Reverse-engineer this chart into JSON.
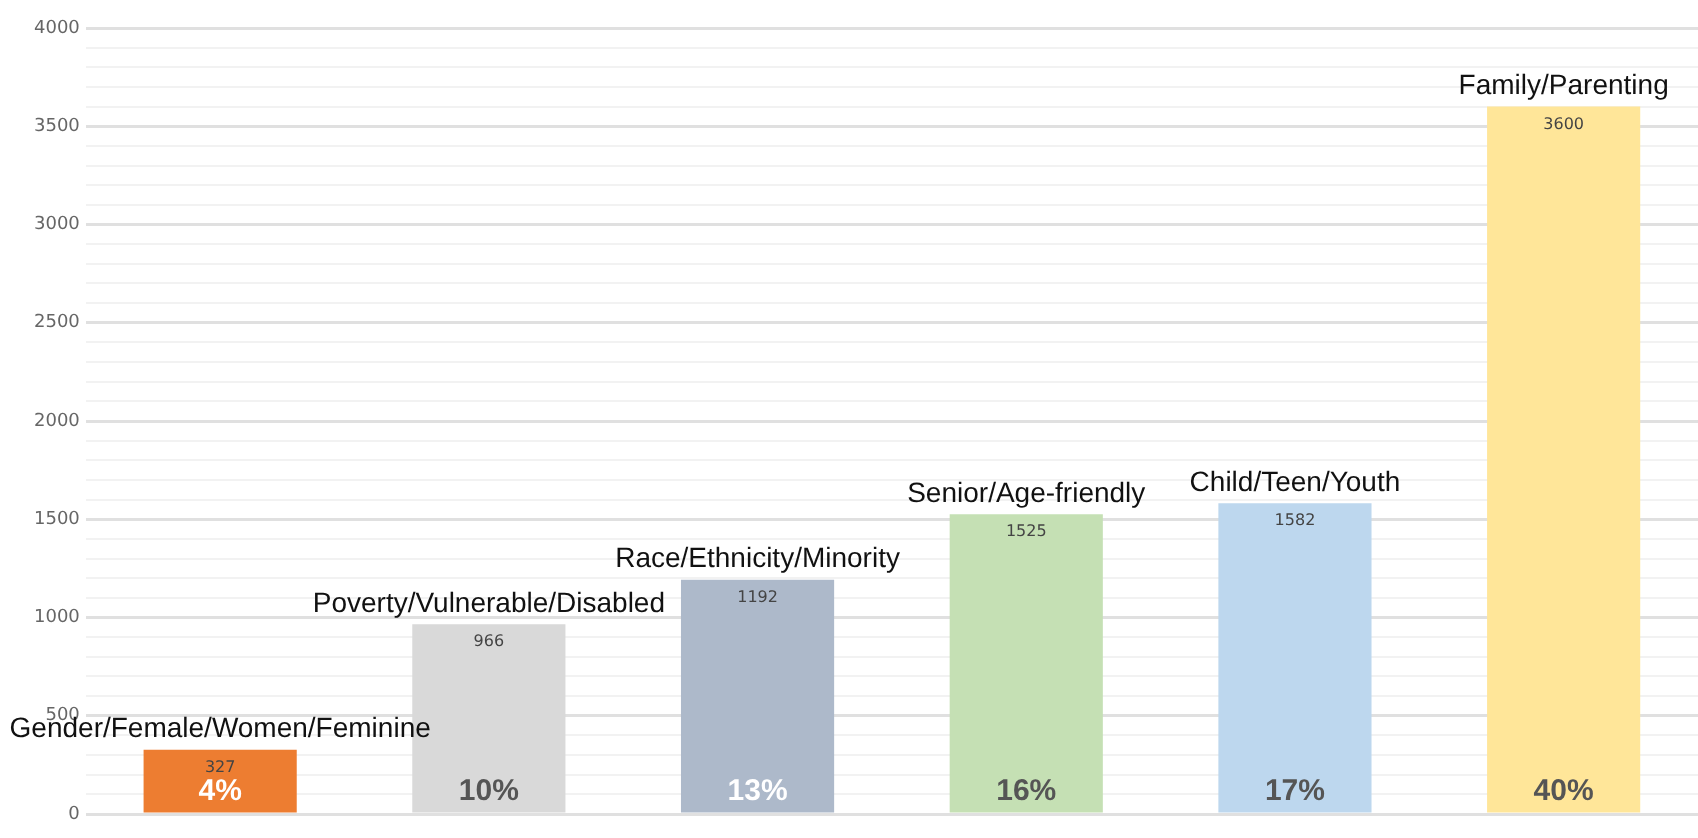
{
  "chart_data": {
    "type": "bar",
    "categories": [
      "Gender/Female/Women/Feminine",
      "Poverty/Vulnerable/Disabled",
      "Race/Ethnicity/Minority",
      "Senior/Age-friendly",
      "Child/Teen/Youth",
      "Family/Parenting"
    ],
    "values": [
      327,
      966,
      1192,
      1525,
      1582,
      3600
    ],
    "colors": [
      "#ed7d31",
      "#d9d9d9",
      "#adb9ca",
      "#c5e0b4",
      "#bdd7ee",
      "#ffe699"
    ],
    "data_labels": true,
    "ylim": [
      0,
      4000
    ],
    "yticks": [
      0,
      {
        "value": 100,
        "label": null
      },
      {
        "value": 200,
        "label": null
      },
      {
        "value": 300,
        "label": null
      },
      {
        "value": 400,
        "label": null
      },
      500,
      {
        "value": 600,
        "label": null
      },
      {
        "value": 700,
        "label": null
      },
      {
        "value": 800,
        "label": null
      },
      {
        "value": 900,
        "label": null
      },
      1000,
      {
        "value": 1100,
        "label": null
      },
      {
        "value": 1200,
        "label": null
      },
      {
        "value": 1300,
        "label": null
      },
      {
        "value": 1400,
        "label": null
      },
      1500,
      {
        "value": 1600,
        "label": null
      },
      {
        "value": 1700,
        "label": null
      },
      {
        "value": 1800,
        "label": null
      },
      {
        "value": 1900,
        "label": null
      },
      2000,
      {
        "value": 2100,
        "label": null
      },
      {
        "value": 2200,
        "label": null
      },
      {
        "value": 2300,
        "label": null
      },
      {
        "value": 2400,
        "label": null
      },
      2500,
      {
        "value": 2600,
        "label": null
      },
      {
        "value": 2700,
        "label": null
      },
      {
        "value": 2800,
        "label": null
      },
      {
        "value": 2900,
        "label": null
      },
      3000,
      {
        "value": 3100,
        "label": null
      },
      {
        "value": 3200,
        "label": null
      },
      {
        "value": 3300,
        "label": null
      },
      {
        "value": 3400,
        "label": null
      },
      3500,
      {
        "value": 3600,
        "label": null
      },
      {
        "value": 3700,
        "label": null
      },
      {
        "value": 3800,
        "label": null
      },
      {
        "value": 3900,
        "label": null
      },
      4000
    ],
    "grid": "y",
    "legend": false,
    "annotations": [
      "4%",
      "10%",
      "13%",
      "16%",
      "17%",
      "40%"
    ]
  }
}
